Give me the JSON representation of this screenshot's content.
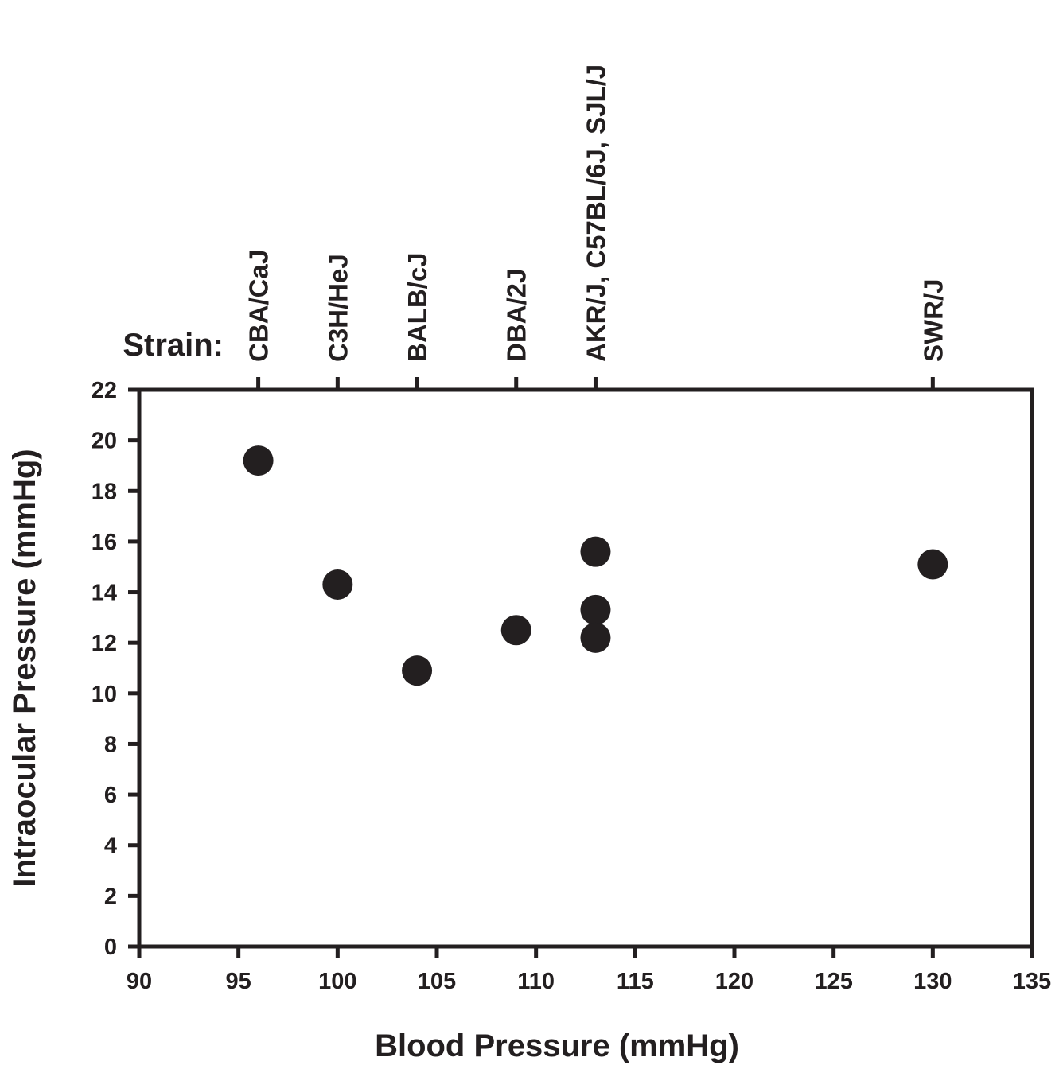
{
  "chart_data": {
    "type": "scatter",
    "title": "",
    "xlabel": "Blood Pressure (mmHg)",
    "ylabel": "Intraocular Pressure (mmHg)",
    "xlim": [
      90,
      135
    ],
    "ylim": [
      0,
      22
    ],
    "x_ticks": [
      90,
      95,
      100,
      105,
      110,
      115,
      120,
      125,
      130,
      135
    ],
    "y_ticks": [
      0,
      2,
      4,
      6,
      8,
      10,
      12,
      14,
      16,
      18,
      20,
      22
    ],
    "grid": false,
    "marker_color": "#231f20",
    "points": [
      {
        "x": 96,
        "y": 19.2
      },
      {
        "x": 100,
        "y": 14.3
      },
      {
        "x": 104,
        "y": 10.9
      },
      {
        "x": 109,
        "y": 12.5
      },
      {
        "x": 113,
        "y": 15.6
      },
      {
        "x": 113,
        "y": 13.3
      },
      {
        "x": 113,
        "y": 12.2
      },
      {
        "x": 130,
        "y": 15.1
      }
    ],
    "top_axis": {
      "heading": "Strain:",
      "labels": [
        {
          "x": 96,
          "label": "CBA/CaJ"
        },
        {
          "x": 100,
          "label": "C3H/HeJ"
        },
        {
          "x": 104,
          "label": "BALB/cJ"
        },
        {
          "x": 109,
          "label": "DBA/2J"
        },
        {
          "x": 113,
          "label": "AKR/J, C57BL/6J, SJL/J"
        },
        {
          "x": 130,
          "label": "SWR/J"
        }
      ]
    }
  }
}
